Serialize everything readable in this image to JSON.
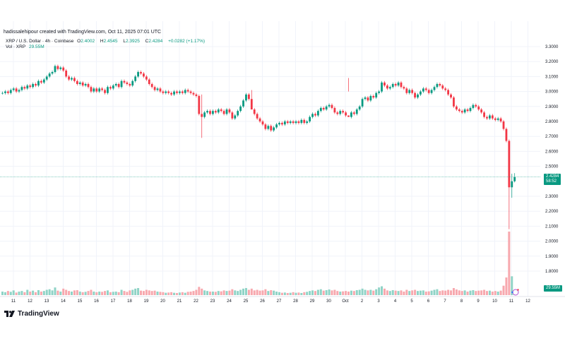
{
  "header": {
    "created_by": "hadissalehipour created with TradingView.com, Oct 11, 2025 07:01 UTC"
  },
  "legend": {
    "symbol": "XRP / U.S. Dollar · 4h · Coinbase",
    "open_label": "O",
    "open": "2.4002",
    "high_label": "H",
    "high": "2.4545",
    "low_label": "L",
    "low": "2.3925",
    "close_label": "C",
    "close": "2.4284",
    "change": "+0.0282 (+1.17%)",
    "volume_label": "Vol · XRP",
    "volume": "29.55M"
  },
  "price_tag": {
    "price": "2.4284",
    "countdown": "58:52"
  },
  "volume_tag": "29.55M",
  "footer": {
    "brand": "TradingView"
  },
  "colors": {
    "up": "#089981",
    "down": "#f23645",
    "up_vol": "#8fd3c6",
    "down_vol": "#f7a8ae"
  },
  "chart_data": {
    "type": "candlestick",
    "interval": "4h",
    "price_ticks": [
      "3.3000",
      "3.2000",
      "3.1000",
      "3.0000",
      "2.9000",
      "2.8000",
      "2.7000",
      "2.6000",
      "2.5000",
      "2.3000",
      "2.2000",
      "2.1000",
      "2.0000",
      "1.9000",
      "1.8000"
    ],
    "date_ticks": [
      "11",
      "12",
      "13",
      "14",
      "15",
      "16",
      "17",
      "18",
      "19",
      "20",
      "21",
      "22",
      "23",
      "24",
      "25",
      "26",
      "27",
      "28",
      "29",
      "30",
      "Oct",
      "2",
      "3",
      "4",
      "5",
      "6",
      "7",
      "8",
      "9",
      "10",
      "11",
      "12"
    ],
    "first_open": 2.99,
    "close": [
      2.99,
      3.0,
      2.99,
      3.01,
      3.02,
      3.0,
      3.01,
      3.03,
      3.02,
      3.04,
      3.03,
      3.05,
      3.04,
      3.07,
      3.06,
      3.08,
      3.1,
      3.12,
      3.13,
      3.17,
      3.15,
      3.16,
      3.14,
      3.1,
      3.08,
      3.09,
      3.07,
      3.05,
      3.06,
      3.04,
      3.05,
      3.03,
      3.0,
      3.02,
      3.0,
      3.02,
      3.01,
      2.99,
      3.03,
      3.02,
      3.04,
      3.05,
      3.03,
      3.07,
      3.06,
      3.05,
      3.04,
      3.07,
      3.1,
      3.13,
      3.12,
      3.1,
      3.08,
      3.05,
      3.03,
      3.01,
      3.02,
      3.0,
      2.99,
      3.0,
      2.99,
      2.98,
      3.0,
      2.99,
      3.0,
      2.99,
      3.01,
      3.0,
      2.99,
      2.98,
      2.97,
      2.85,
      2.83,
      2.86,
      2.87,
      2.85,
      2.87,
      2.86,
      2.88,
      2.87,
      2.85,
      2.88,
      2.86,
      2.82,
      2.84,
      2.87,
      2.9,
      2.94,
      2.98,
      2.95,
      2.88,
      2.85,
      2.82,
      2.8,
      2.78,
      2.75,
      2.77,
      2.74,
      2.76,
      2.78,
      2.79,
      2.78,
      2.8,
      2.79,
      2.8,
      2.79,
      2.8,
      2.79,
      2.81,
      2.79,
      2.8,
      2.83,
      2.85,
      2.84,
      2.87,
      2.89,
      2.88,
      2.9,
      2.91,
      2.89,
      2.86,
      2.85,
      2.87,
      2.86,
      2.84,
      2.83,
      2.86,
      2.85,
      2.88,
      2.9,
      2.95,
      2.96,
      2.94,
      2.97,
      2.96,
      2.99,
      3.0,
      3.06,
      3.04,
      3.02,
      3.03,
      3.05,
      3.04,
      3.06,
      3.03,
      3.02,
      2.99,
      3.01,
      2.99,
      2.96,
      2.98,
      3.0,
      3.02,
      3.01,
      2.99,
      3.01,
      3.03,
      3.05,
      3.04,
      3.02,
      3.01,
      2.98,
      2.96,
      2.9,
      2.88,
      2.87,
      2.86,
      2.88,
      2.87,
      2.89,
      2.91,
      2.9,
      2.88,
      2.86,
      2.83,
      2.82,
      2.84,
      2.82,
      2.81,
      2.82,
      2.8,
      2.75,
      2.67,
      2.36,
      2.4002,
      2.4284
    ],
    "wick_overrides": {
      "72": [
        2.98,
        2.69
      ],
      "90": [
        3.01,
        2.94
      ],
      "125": [
        3.09,
        3.0
      ],
      "183": [
        2.68,
        2.08
      ],
      "184": [
        2.45,
        2.29
      ],
      "185": [
        2.4545,
        2.3925
      ]
    },
    "volume_m": [
      30,
      25,
      35,
      28,
      40,
      22,
      30,
      35,
      25,
      45,
      30,
      38,
      25,
      42,
      30,
      35,
      45,
      50,
      40,
      65,
      38,
      30,
      55,
      45,
      35,
      30,
      40,
      42,
      30,
      25,
      28,
      35,
      45,
      30,
      25,
      30,
      28,
      35,
      40,
      25,
      28,
      30,
      25,
      45,
      35,
      28,
      40,
      45,
      55,
      60,
      38,
      35,
      45,
      40,
      35,
      38,
      30,
      28,
      25,
      20,
      22,
      25,
      20,
      18,
      22,
      25,
      20,
      28,
      30,
      35,
      45,
      70,
      55,
      40,
      35,
      30,
      30,
      28,
      35,
      32,
      40,
      35,
      38,
      50,
      40,
      35,
      45,
      55,
      60,
      45,
      55,
      40,
      45,
      38,
      40,
      50,
      35,
      42,
      38,
      30,
      25,
      20,
      22,
      18,
      20,
      25,
      20,
      22,
      18,
      25,
      28,
      35,
      40,
      35,
      45,
      50,
      38,
      42,
      48,
      40,
      45,
      35,
      30,
      32,
      35,
      30,
      38,
      35,
      42,
      45,
      55,
      45,
      40,
      45,
      38,
      50,
      65,
      75,
      55,
      40,
      35,
      42,
      38,
      35,
      40,
      30,
      45,
      35,
      40,
      45,
      35,
      38,
      40,
      30,
      32,
      38,
      45,
      50,
      35,
      40,
      38,
      45,
      40,
      60,
      48,
      40,
      35,
      40,
      30,
      38,
      42,
      35,
      38,
      40,
      45,
      35,
      38,
      30,
      35,
      30,
      38,
      80,
      150,
      540,
      160,
      29.55
    ]
  }
}
